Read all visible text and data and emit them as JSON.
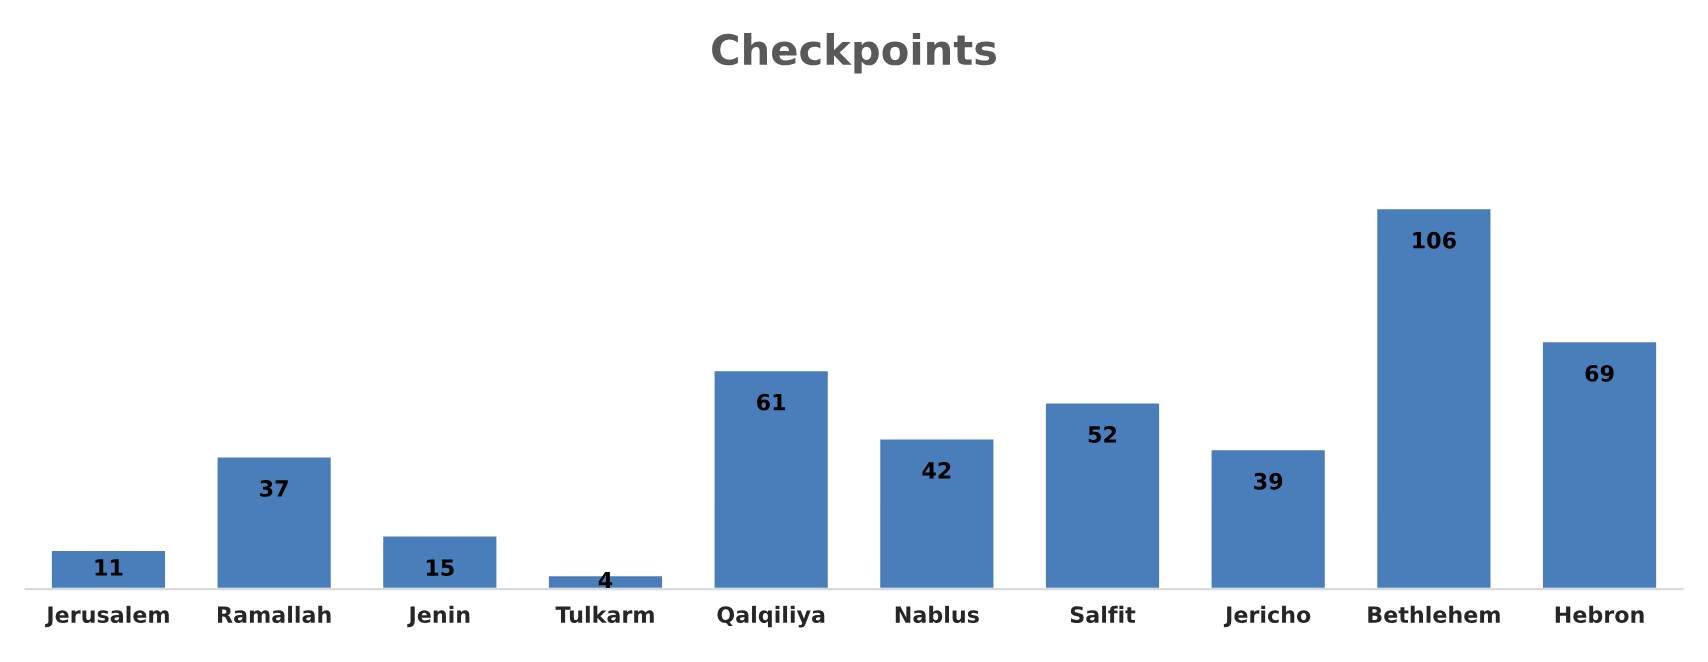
{
  "chart_data": {
    "type": "bar",
    "title": "Checkpoints",
    "categories": [
      "Jerusalem",
      "Ramallah",
      "Jenin",
      "Tulkarm",
      "Qalqiliya",
      "Nablus",
      "Salfit",
      "Jericho",
      "Bethlehem",
      "Hebron"
    ],
    "values": [
      11,
      37,
      15,
      4,
      61,
      42,
      52,
      39,
      106,
      69
    ],
    "color": "#4a7ebb",
    "data_labels": true,
    "grid": false,
    "legend": false
  }
}
